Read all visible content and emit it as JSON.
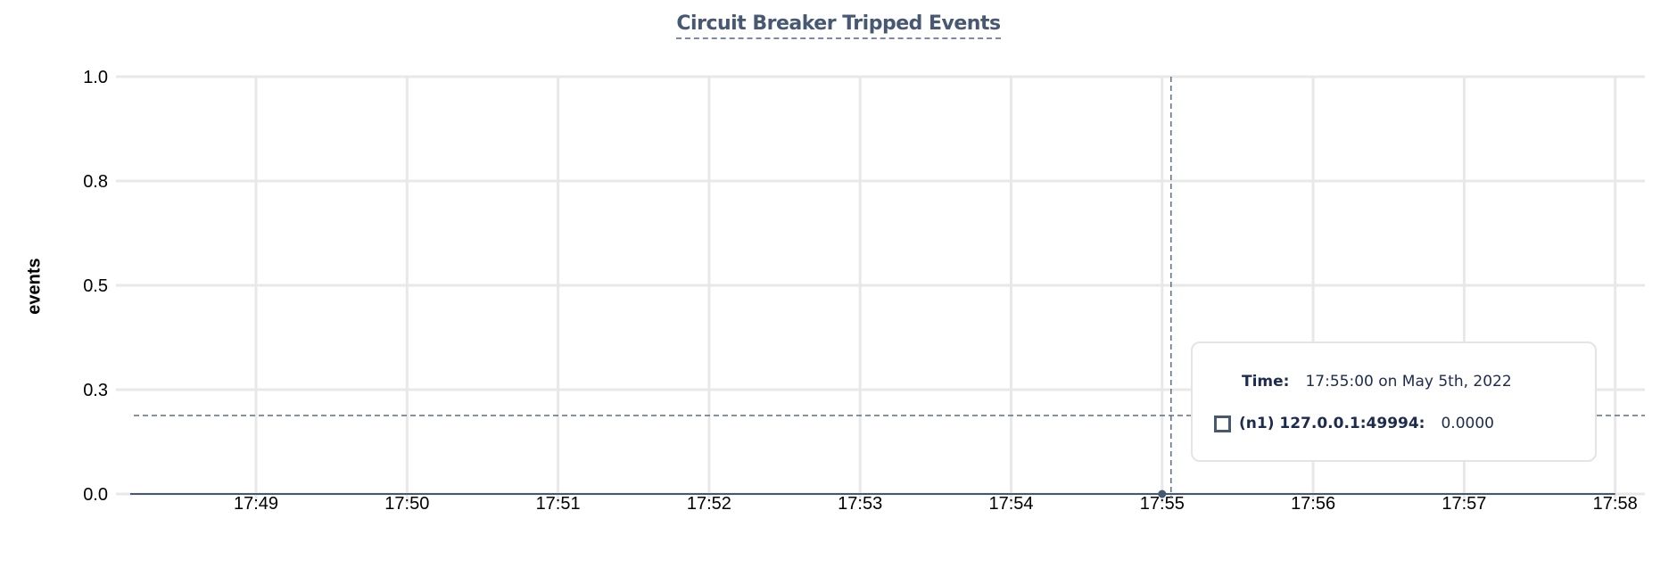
{
  "chart_data": {
    "type": "line",
    "title": "Circuit Breaker Tripped Events",
    "xlabel": "",
    "ylabel": "events",
    "x_ticks": [
      "17:49",
      "17:50",
      "17:51",
      "17:52",
      "17:53",
      "17:54",
      "17:55",
      "17:56",
      "17:57",
      "17:58"
    ],
    "y_ticks": [
      "1.0",
      "0.8",
      "0.5",
      "0.3",
      "0.0"
    ],
    "ylim": [
      0,
      1
    ],
    "xlim": [
      "17:48:10",
      "17:58:12"
    ],
    "grid": true,
    "series": [
      {
        "name": "(n1) 127.0.0.1:49994",
        "color": "#475872",
        "x": [
          "17:48:10",
          "17:58:00"
        ],
        "y": [
          0,
          0
        ]
      }
    ],
    "hover": {
      "x": "17:55:00",
      "y": 0
    }
  },
  "tooltip": {
    "time_label": "Time:",
    "time_value": "17:55:00 on May 5th, 2022",
    "series_label": "(n1) 127.0.0.1:49994:",
    "series_value": "0.0000"
  }
}
